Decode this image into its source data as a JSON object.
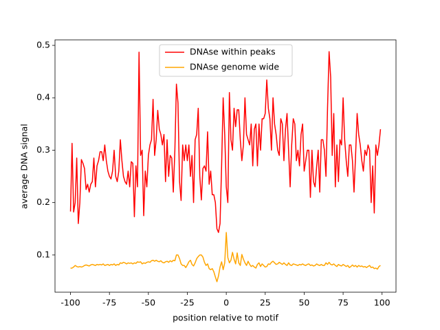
{
  "chart_data": {
    "type": "line",
    "xlabel": "position relative to motif",
    "ylabel": "average DNA signal",
    "x": [
      -100,
      -99,
      -98,
      -97,
      -96,
      -95,
      -94,
      -93,
      -92,
      -91,
      -90,
      -89,
      -88,
      -87,
      -86,
      -85,
      -84,
      -83,
      -82,
      -81,
      -80,
      -79,
      -78,
      -77,
      -76,
      -75,
      -74,
      -73,
      -72,
      -71,
      -70,
      -69,
      -68,
      -67,
      -66,
      -65,
      -64,
      -63,
      -62,
      -61,
      -60,
      -59,
      -58,
      -57,
      -56,
      -55,
      -54,
      -53,
      -52,
      -51,
      -50,
      -49,
      -48,
      -47,
      -46,
      -45,
      -44,
      -43,
      -42,
      -41,
      -40,
      -39,
      -38,
      -37,
      -36,
      -35,
      -34,
      -33,
      -32,
      -31,
      -30,
      -29,
      -28,
      -27,
      -26,
      -25,
      -24,
      -23,
      -22,
      -21,
      -20,
      -19,
      -18,
      -17,
      -16,
      -15,
      -14,
      -13,
      -12,
      -11,
      -10,
      -9,
      -8,
      -7,
      -6,
      -5,
      -4,
      -3,
      -2,
      -1,
      0,
      1,
      2,
      3,
      4,
      5,
      6,
      7,
      8,
      9,
      10,
      11,
      12,
      13,
      14,
      15,
      16,
      17,
      18,
      19,
      20,
      21,
      22,
      23,
      24,
      25,
      26,
      27,
      28,
      29,
      30,
      31,
      32,
      33,
      34,
      35,
      36,
      37,
      38,
      39,
      40,
      41,
      42,
      43,
      44,
      45,
      46,
      47,
      48,
      49,
      50,
      51,
      52,
      53,
      54,
      55,
      56,
      57,
      58,
      59,
      60,
      61,
      62,
      63,
      64,
      65,
      66,
      67,
      68,
      69,
      70,
      71,
      72,
      73,
      74,
      75,
      76,
      77,
      78,
      79,
      80,
      81,
      82,
      83,
      84,
      85,
      86,
      87,
      88,
      89,
      90,
      91,
      92,
      93,
      94,
      95,
      96,
      97,
      98,
      99
    ],
    "series": [
      {
        "name": "DNAse within peaks",
        "color": "#ff0000",
        "values": [
          0.183,
          0.313,
          0.182,
          0.2,
          0.285,
          0.16,
          0.2,
          0.282,
          0.275,
          0.265,
          0.225,
          0.235,
          0.22,
          0.235,
          0.24,
          0.285,
          0.23,
          0.27,
          0.28,
          0.297,
          0.297,
          0.28,
          0.31,
          0.28,
          0.26,
          0.25,
          0.245,
          0.26,
          0.3,
          0.25,
          0.24,
          0.26,
          0.32,
          0.28,
          0.25,
          0.24,
          0.235,
          0.26,
          0.23,
          0.278,
          0.275,
          0.173,
          0.27,
          0.23,
          0.487,
          0.29,
          0.3,
          0.175,
          0.26,
          0.23,
          0.29,
          0.31,
          0.32,
          0.397,
          0.29,
          0.32,
          0.376,
          0.34,
          0.33,
          0.31,
          0.33,
          0.24,
          0.32,
          0.25,
          0.29,
          0.285,
          0.22,
          0.3,
          0.426,
          0.39,
          0.24,
          0.204,
          0.31,
          0.28,
          0.31,
          0.28,
          0.31,
          0.25,
          0.29,
          0.2,
          0.32,
          0.33,
          0.38,
          0.25,
          0.205,
          0.265,
          0.27,
          0.26,
          0.335,
          0.235,
          0.26,
          0.215,
          0.215,
          0.2,
          0.15,
          0.143,
          0.16,
          0.27,
          0.4,
          0.33,
          0.23,
          0.2,
          0.41,
          0.32,
          0.3,
          0.38,
          0.345,
          0.377,
          0.377,
          0.32,
          0.28,
          0.31,
          0.4,
          0.33,
          0.32,
          0.31,
          0.35,
          0.27,
          0.34,
          0.35,
          0.27,
          0.35,
          0.3,
          0.36,
          0.36,
          0.37,
          0.434,
          0.38,
          0.36,
          0.3,
          0.4,
          0.35,
          0.33,
          0.3,
          0.29,
          0.36,
          0.35,
          0.28,
          0.34,
          0.37,
          0.3,
          0.23,
          0.31,
          0.36,
          0.35,
          0.28,
          0.3,
          0.27,
          0.33,
          0.35,
          0.26,
          0.28,
          0.3,
          0.3,
          0.21,
          0.3,
          0.24,
          0.23,
          0.268,
          0.3,
          0.22,
          0.32,
          0.32,
          0.3,
          0.25,
          0.38,
          0.488,
          0.44,
          0.29,
          0.37,
          0.23,
          0.31,
          0.24,
          0.32,
          0.31,
          0.4,
          0.32,
          0.28,
          0.25,
          0.31,
          0.31,
          0.28,
          0.22,
          0.29,
          0.37,
          0.33,
          0.31,
          0.28,
          0.26,
          0.3,
          0.29,
          0.31,
          0.3,
          0.2,
          0.27,
          0.18,
          0.31,
          0.29,
          0.31,
          0.34
        ]
      },
      {
        "name": "DNAse genome wide",
        "color": "#ffa500",
        "values": [
          0.075,
          0.075,
          0.077,
          0.08,
          0.078,
          0.077,
          0.078,
          0.077,
          0.078,
          0.08,
          0.081,
          0.08,
          0.079,
          0.081,
          0.082,
          0.081,
          0.08,
          0.082,
          0.081,
          0.082,
          0.081,
          0.083,
          0.08,
          0.081,
          0.082,
          0.08,
          0.082,
          0.081,
          0.083,
          0.08,
          0.082,
          0.081,
          0.085,
          0.084,
          0.086,
          0.085,
          0.083,
          0.085,
          0.084,
          0.085,
          0.083,
          0.085,
          0.084,
          0.087,
          0.086,
          0.087,
          0.083,
          0.085,
          0.084,
          0.086,
          0.087,
          0.086,
          0.089,
          0.09,
          0.088,
          0.09,
          0.088,
          0.087,
          0.089,
          0.086,
          0.085,
          0.087,
          0.088,
          0.086,
          0.089,
          0.087,
          0.09,
          0.089,
          0.1,
          0.1,
          0.093,
          0.083,
          0.08,
          0.08,
          0.076,
          0.081,
          0.087,
          0.09,
          0.082,
          0.079,
          0.085,
          0.093,
          0.097,
          0.1,
          0.1,
          0.096,
          0.086,
          0.08,
          0.083,
          0.074,
          0.072,
          0.074,
          0.068,
          0.058,
          0.049,
          0.06,
          0.077,
          0.087,
          0.072,
          0.085,
          0.143,
          0.095,
          0.085,
          0.09,
          0.105,
          0.092,
          0.083,
          0.104,
          0.085,
          0.08,
          0.101,
          0.092,
          0.085,
          0.08,
          0.088,
          0.082,
          0.078,
          0.08,
          0.077,
          0.075,
          0.082,
          0.085,
          0.078,
          0.083,
          0.08,
          0.077,
          0.078,
          0.083,
          0.082,
          0.086,
          0.088,
          0.085,
          0.082,
          0.083,
          0.086,
          0.084,
          0.082,
          0.085,
          0.082,
          0.08,
          0.085,
          0.081,
          0.08,
          0.083,
          0.082,
          0.081,
          0.08,
          0.082,
          0.081,
          0.083,
          0.081,
          0.08,
          0.082,
          0.083,
          0.08,
          0.081,
          0.079,
          0.08,
          0.083,
          0.081,
          0.08,
          0.082,
          0.08,
          0.08,
          0.085,
          0.082,
          0.086,
          0.082,
          0.081,
          0.083,
          0.08,
          0.078,
          0.082,
          0.08,
          0.079,
          0.082,
          0.08,
          0.078,
          0.08,
          0.076,
          0.078,
          0.081,
          0.078,
          0.08,
          0.077,
          0.08,
          0.078,
          0.079,
          0.077,
          0.078,
          0.076,
          0.078,
          0.08,
          0.076,
          0.077,
          0.074,
          0.075,
          0.073,
          0.078,
          0.08
        ]
      }
    ],
    "xlim": [
      -109.95,
      108.95
    ],
    "xticks": [
      -100,
      -75,
      -50,
      -25,
      0,
      25,
      50,
      75,
      100
    ],
    "ylim": [
      0.029,
      0.5105
    ],
    "yticks": [
      0.1,
      0.2,
      0.3,
      0.4,
      0.5
    ],
    "grid": false,
    "legend": "upper center"
  }
}
